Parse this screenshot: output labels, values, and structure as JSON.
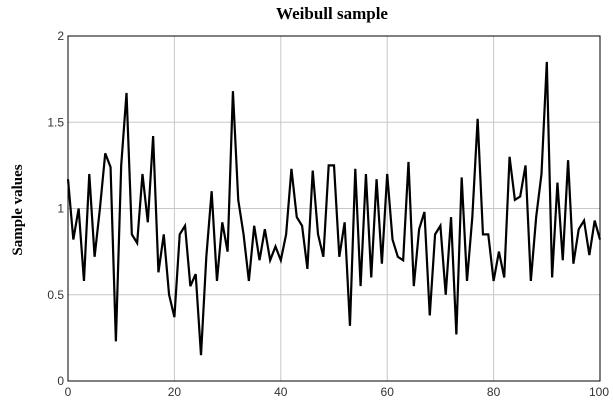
{
  "chart_data": {
    "type": "line",
    "title": "Weibull sample",
    "xlabel": "",
    "ylabel": "Sample values",
    "xlim": [
      0,
      100
    ],
    "ylim": [
      0,
      2
    ],
    "grid": true,
    "x_ticks": [
      0,
      20,
      40,
      60,
      80,
      100
    ],
    "y_ticks": [
      0,
      0.5,
      1,
      1.5,
      2
    ],
    "series": [
      {
        "values": [
          1.17,
          0.82,
          1.0,
          0.58,
          1.2,
          0.72,
          1.0,
          1.32,
          1.24,
          0.23,
          1.25,
          1.67,
          0.85,
          0.8,
          1.2,
          0.92,
          1.42,
          0.63,
          0.85,
          0.5,
          0.37,
          0.85,
          0.9,
          0.55,
          0.62,
          0.15,
          0.72,
          1.1,
          0.58,
          0.92,
          0.75,
          1.68,
          1.05,
          0.85,
          0.58,
          0.9,
          0.7,
          0.88,
          0.7,
          0.78,
          0.7,
          0.85,
          1.23,
          0.95,
          0.9,
          0.65,
          1.22,
          0.85,
          0.72,
          1.25,
          1.25,
          0.72,
          0.92,
          0.32,
          1.23,
          0.55,
          1.2,
          0.6,
          1.17,
          0.68,
          1.2,
          0.82,
          0.72,
          0.7,
          1.27,
          0.55,
          0.88,
          0.98,
          0.38,
          0.85,
          0.9,
          0.5,
          0.95,
          0.27,
          1.18,
          0.58,
          0.95,
          1.52,
          0.85,
          0.85,
          0.58,
          0.75,
          0.6,
          1.3,
          1.05,
          1.07,
          1.25,
          0.58,
          0.95,
          1.2,
          1.85,
          0.6,
          1.15,
          0.7,
          1.28,
          0.68,
          0.88,
          0.93,
          0.73,
          0.93,
          0.82
        ]
      }
    ]
  }
}
